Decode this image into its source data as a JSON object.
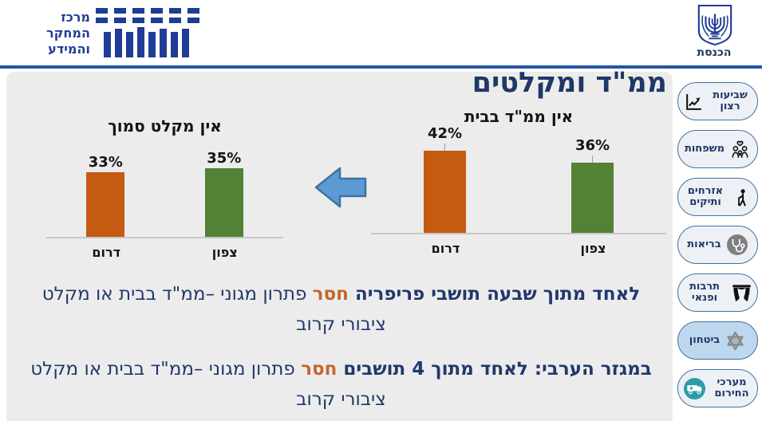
{
  "header": {
    "logo_lines": [
      "מרכז",
      "המחקר",
      "והמידע"
    ],
    "knesset_label": "הכנסת"
  },
  "page_title": "ממ\"ד ומקלטים",
  "chart_data": [
    {
      "type": "bar",
      "title": "אין ממ\"ד בבית",
      "categories": [
        "דרום",
        "צפון"
      ],
      "values": [
        42,
        36
      ],
      "labels": [
        "42%",
        "36%"
      ],
      "colors": [
        "#C55A11",
        "#538135"
      ],
      "ylim": [
        0,
        45
      ],
      "grid": false,
      "leader_lines": true
    },
    {
      "type": "bar",
      "title": "אין מקלט סמוך",
      "categories": [
        "דרום",
        "צפון"
      ],
      "values": [
        33,
        35
      ],
      "labels": [
        "33%",
        "35%"
      ],
      "colors": [
        "#C55A11",
        "#538135"
      ],
      "ylim": [
        0,
        45
      ],
      "grid": false,
      "leader_lines": false
    }
  ],
  "notes": [
    {
      "bold": "לאחד מתוך שבעה תושבי פריפריה ",
      "highlight": "חסר",
      "rest": " פתרון מגוני –ממ\"ד בבית או מקלט\nציבורי קרוב"
    },
    {
      "bold": "במגזר הערבי:  לאחד מתוך 4 תושבים ",
      "highlight": "חסר",
      "rest": " פתרון מגוני –ממ\"ד בבית או מקלט\nציבורי קרוב"
    }
  ],
  "sidebar": {
    "items": [
      {
        "id": "satisfaction",
        "label": "שביעות רצון",
        "icon": "satisfaction-chart-icon",
        "icon_position": "left",
        "two_line": true,
        "active": false
      },
      {
        "id": "families",
        "label": "משפחות",
        "icon": "families-icon",
        "icon_position": "right",
        "two_line": false,
        "active": false
      },
      {
        "id": "seniors",
        "label": "אזרחים ותיקים",
        "icon": "seniors-icon",
        "icon_position": "right",
        "two_line": true,
        "active": false
      },
      {
        "id": "health",
        "label": "בריאות",
        "icon": "health-icon",
        "icon_position": "right",
        "two_line": false,
        "active": false
      },
      {
        "id": "culture",
        "label": "תרבות ופנאי",
        "icon": "culture-icon",
        "icon_position": "right",
        "two_line": true,
        "active": false
      },
      {
        "id": "security",
        "label": "ביטחון",
        "icon": "security-icon",
        "icon_position": "right",
        "two_line": false,
        "active": true
      },
      {
        "id": "emergency",
        "label": "מערכי החירום",
        "icon": "emergency-icon",
        "icon_position": "left",
        "two_line": true,
        "active": false
      }
    ]
  },
  "colors": {
    "accent_navy": "#1F3864",
    "bar_orange": "#C55A11",
    "bar_green": "#538135",
    "highlight_orange": "#C5652A",
    "arrow_fill": "#5B9BD5",
    "arrow_border": "#41719C",
    "active_button_fill": "#BDD7EE",
    "top_rule_blue": "#2456A4",
    "logo_blue": "#1E3D96",
    "panel_gray": "#ECECEC"
  }
}
